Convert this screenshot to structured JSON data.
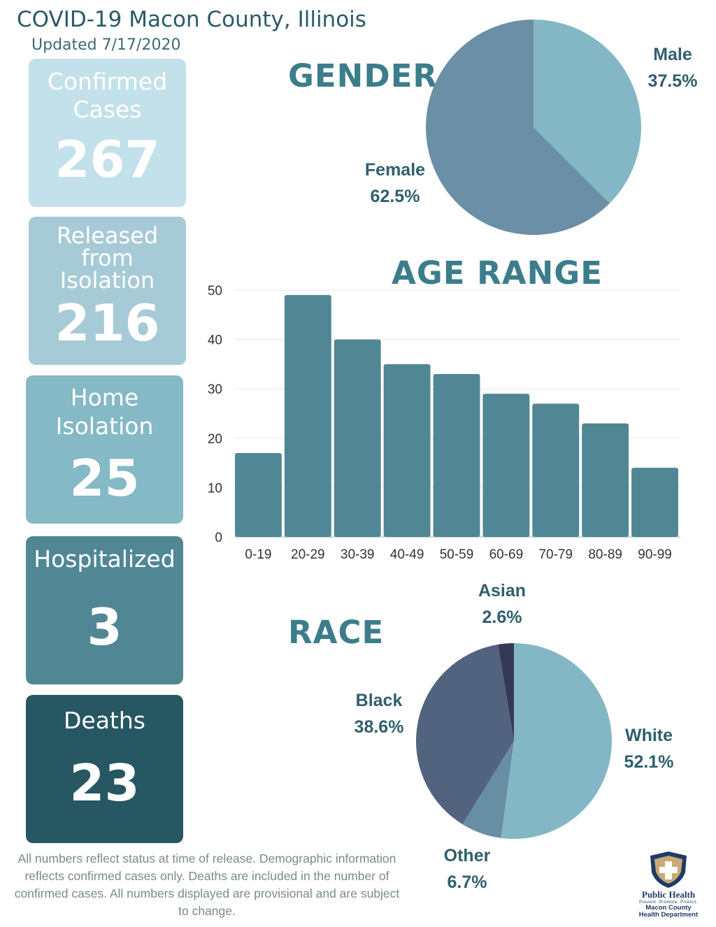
{
  "header": {
    "title": "COVID-19 Macon County, Illinois",
    "updated": "Updated 7/17/2020"
  },
  "stats": {
    "confirmed": {
      "label_line1": "Confirmed",
      "label_line2": "Cases",
      "value": "267"
    },
    "released": {
      "label_line1": "Released",
      "label_line2": "from",
      "label_line3": "Isolation",
      "value": "216"
    },
    "home": {
      "label_line1": "Home",
      "label_line2": "Isolation",
      "value": "25"
    },
    "hospitalized": {
      "label": "Hospitalized",
      "value": "3"
    },
    "deaths": {
      "label": "Deaths",
      "value": "23"
    }
  },
  "colors": {
    "confirmed": "#c3e1ea",
    "released": "#a7cbd6",
    "home": "#85b9c6",
    "hospitalized": "#518794",
    "deaths": "#265762",
    "bar": "#518794",
    "section_title": "#3c7d8b"
  },
  "gender": {
    "title": "GENDER",
    "male": {
      "name": "Male",
      "pct": "37.5%"
    },
    "female": {
      "name": "Female",
      "pct": "62.5%"
    }
  },
  "age": {
    "title": "AGE RANGE"
  },
  "race": {
    "title": "RACE",
    "white": {
      "name": "White",
      "pct": "52.1%"
    },
    "other": {
      "name": "Other",
      "pct": "6.7%"
    },
    "black": {
      "name": "Black",
      "pct": "38.6%"
    },
    "asian": {
      "name": "Asian",
      "pct": "2.6%"
    }
  },
  "footnote": "All numbers reflect status at time of release. Demographic information reflects confirmed cases only. Deaths are included in the number of confirmed cases. All numbers displayed are provisional and are subject to change.",
  "logo": {
    "name": "Public Health",
    "tagline": "Prevent. Promote. Protect.",
    "dept_line1": "Macon County",
    "dept_line2": "Health Department"
  },
  "chart_data": [
    {
      "type": "pie",
      "title": "GENDER",
      "labels": [
        "Male",
        "Female"
      ],
      "values": [
        37.5,
        62.5
      ],
      "colors": [
        "#84b7c6",
        "#6a8fa6"
      ]
    },
    {
      "type": "bar",
      "title": "AGE RANGE",
      "categories": [
        "0-19",
        "20-29",
        "30-39",
        "40-49",
        "50-59",
        "60-69",
        "70-79",
        "80-89",
        "90-99"
      ],
      "values": [
        17,
        49,
        40,
        35,
        33,
        29,
        27,
        23,
        14
      ],
      "yticks": [
        0,
        10,
        20,
        30,
        40,
        50
      ],
      "ylim": [
        0,
        50
      ],
      "grid": true
    },
    {
      "type": "pie",
      "title": "RACE",
      "labels": [
        "White",
        "Other",
        "Black",
        "Asian"
      ],
      "values": [
        52.1,
        6.7,
        38.6,
        2.6
      ],
      "colors": [
        "#84b7c6",
        "#688ea4",
        "#52637f",
        "#343a55"
      ]
    }
  ]
}
